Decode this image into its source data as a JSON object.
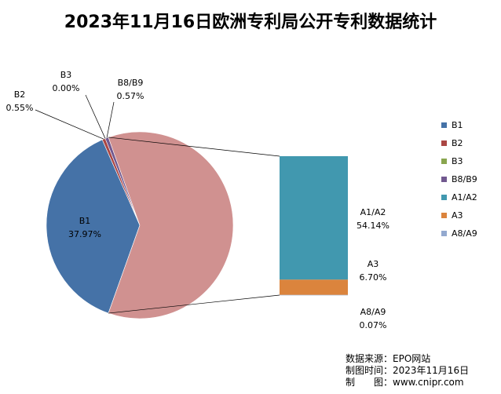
{
  "chart_data": {
    "type": "pie",
    "title": "2023年11月16日欧洲专利局公开专利数据统计",
    "main_slices": [
      {
        "name": "B1",
        "percent_label": "37.97%",
        "value": 37.97,
        "color": "#4572A7"
      },
      {
        "name": "B2",
        "percent_label": "0.55%",
        "value": 0.55,
        "color": "#AA4643"
      },
      {
        "name": "B3",
        "percent_label": "0.00%",
        "value": 0.0,
        "color": "#89A54E"
      },
      {
        "name": "B8/B9",
        "percent_label": "0.57%",
        "value": 0.57,
        "color": "#71588F"
      },
      {
        "name": "A (combined)",
        "percent_label": "",
        "value": 60.91,
        "color": "#D09190"
      }
    ],
    "breakout_bar": [
      {
        "name": "A1/A2",
        "percent_label": "54.14%",
        "value": 54.14,
        "color": "#4198AF"
      },
      {
        "name": "A3",
        "percent_label": "6.70%",
        "value": 6.7,
        "color": "#DB843D"
      },
      {
        "name": "A8/A9",
        "percent_label": "0.07%",
        "value": 0.07,
        "color": "#93A9CF"
      }
    ],
    "legend": [
      {
        "label": "B1",
        "color": "#4572A7"
      },
      {
        "label": "B2",
        "color": "#AA4643"
      },
      {
        "label": "B3",
        "color": "#89A54E"
      },
      {
        "label": "B8/B9",
        "color": "#71588F"
      },
      {
        "label": "A1/A2",
        "color": "#4198AF"
      },
      {
        "label": "A3",
        "color": "#DB843D"
      },
      {
        "label": "A8/A9",
        "color": "#93A9CF"
      }
    ],
    "legend_position": "right"
  },
  "source": {
    "line1": "数据来源：EPO网站",
    "line2": "制图时间：2023年11月16日",
    "line3": "制　　图：www.cnipr.com"
  }
}
